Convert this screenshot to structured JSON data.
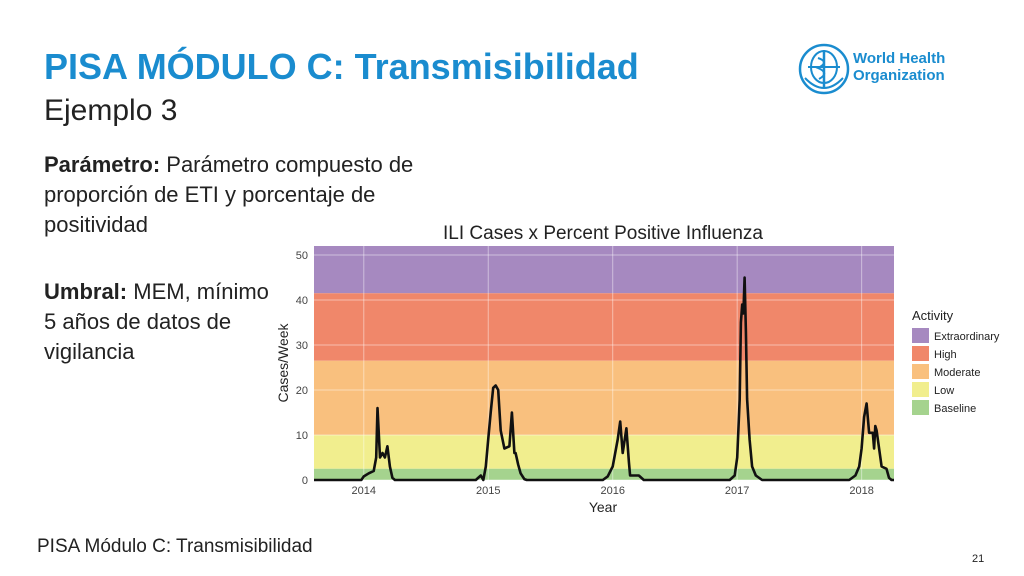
{
  "slide": {
    "title": "PISA MÓDULO C: Transmisibilidad",
    "subtitle": "Ejemplo 3",
    "logo_text": "World Health\nOrganization",
    "param_label": "Parámetro:",
    "param_text": " Parámetro compuesto de proporción de ETI  y porcentaje de positividad",
    "umbral_label": "Umbral:",
    "umbral_text": " MEM, mínimo 5 años de datos de vigilancia",
    "footer": "PISA Módulo C: Transmisibilidad",
    "page_number": "21",
    "title_color": "#1a8ccf"
  },
  "chart_data": {
    "type": "area",
    "title": "ILI Cases x Percent Positive Influenza",
    "xlabel": "Year",
    "ylabel": "Cases/Week",
    "xlim": [
      2013.6,
      2018.26
    ],
    "ylim": [
      0,
      52
    ],
    "x_ticks": [
      2014,
      2015,
      2016,
      2017,
      2018
    ],
    "y_ticks": [
      0,
      10,
      20,
      30,
      40,
      50
    ],
    "grid": true,
    "legend_title": "Activity",
    "legend_position": "right",
    "bands": [
      {
        "name": "Extraordinary",
        "from": 41.5,
        "to": 52,
        "color": "#a689c0"
      },
      {
        "name": "High",
        "from": 26.5,
        "to": 41.5,
        "color": "#f0876a"
      },
      {
        "name": "Moderate",
        "from": 10,
        "to": 26.5,
        "color": "#f9c07e"
      },
      {
        "name": "Low",
        "from": 2.5,
        "to": 10,
        "color": "#f1ee8e"
      },
      {
        "name": "Baseline",
        "from": 0,
        "to": 2.5,
        "color": "#a5d38e"
      }
    ],
    "series": [
      {
        "x": [
          2013.6,
          2013.98,
          2014.0,
          2014.04,
          2014.08,
          2014.1,
          2014.11,
          2014.13,
          2014.15,
          2014.17,
          2014.19,
          2014.21,
          2014.23,
          2014.25,
          2014.28,
          2014.35,
          2014.9,
          2014.94,
          2014.96,
          2014.98,
          2015.0,
          2015.02,
          2015.04,
          2015.06,
          2015.08,
          2015.1,
          2015.13,
          2015.17,
          2015.19,
          2015.21,
          2015.22,
          2015.24,
          2015.26,
          2015.29,
          2015.31,
          2015.35,
          2015.92,
          2015.96,
          2016.0,
          2016.04,
          2016.06,
          2016.08,
          2016.11,
          2016.13,
          2016.14,
          2016.17,
          2016.21,
          2016.25,
          2016.3,
          2016.94,
          2016.98,
          2017.0,
          2017.02,
          2017.03,
          2017.04,
          2017.05,
          2017.06,
          2017.07,
          2017.08,
          2017.1,
          2017.12,
          2017.15,
          2017.2,
          2017.3,
          2017.9,
          2017.95,
          2017.98,
          2018.0,
          2018.02,
          2018.04,
          2018.06,
          2018.09,
          2018.1,
          2018.11,
          2018.12,
          2018.14,
          2018.16,
          2018.2,
          2018.22,
          2018.24,
          2018.26
        ],
        "values": [
          0,
          0,
          0.8,
          1.5,
          2,
          5,
          16,
          5,
          6,
          5,
          7.5,
          3,
          0.5,
          0,
          0,
          0,
          0,
          1,
          0,
          3,
          9,
          15,
          20.5,
          21,
          20,
          11,
          7,
          7.5,
          15,
          6,
          6,
          3.5,
          1.5,
          0.2,
          0,
          0,
          0,
          0.8,
          3,
          9,
          13,
          6,
          11.5,
          4,
          1,
          1,
          1,
          0,
          0,
          0,
          1,
          5,
          18,
          35,
          39,
          37,
          45,
          33,
          18,
          9,
          3,
          1,
          0,
          0,
          0,
          1,
          3,
          7,
          14,
          17,
          10.5,
          10.5,
          7,
          12,
          11,
          7,
          3,
          2.5,
          0.5,
          0,
          0
        ]
      }
    ]
  }
}
